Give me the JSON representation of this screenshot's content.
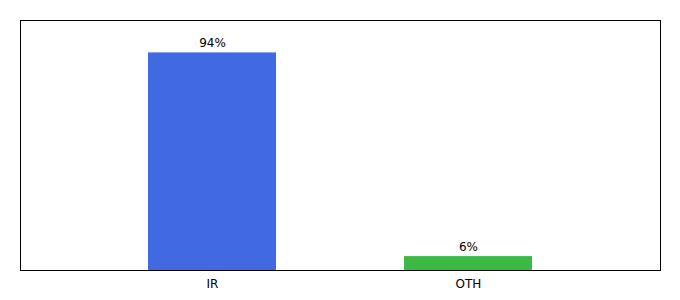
{
  "chart_data": {
    "type": "bar",
    "categories": [
      "IR",
      "OTH"
    ],
    "values": [
      94,
      6
    ],
    "value_labels": [
      "94%",
      "6%"
    ],
    "colors": [
      "#4169e1",
      "#3cb943"
    ],
    "ylim": [
      0,
      108
    ],
    "data_labels": true,
    "tick_labels": "x"
  }
}
